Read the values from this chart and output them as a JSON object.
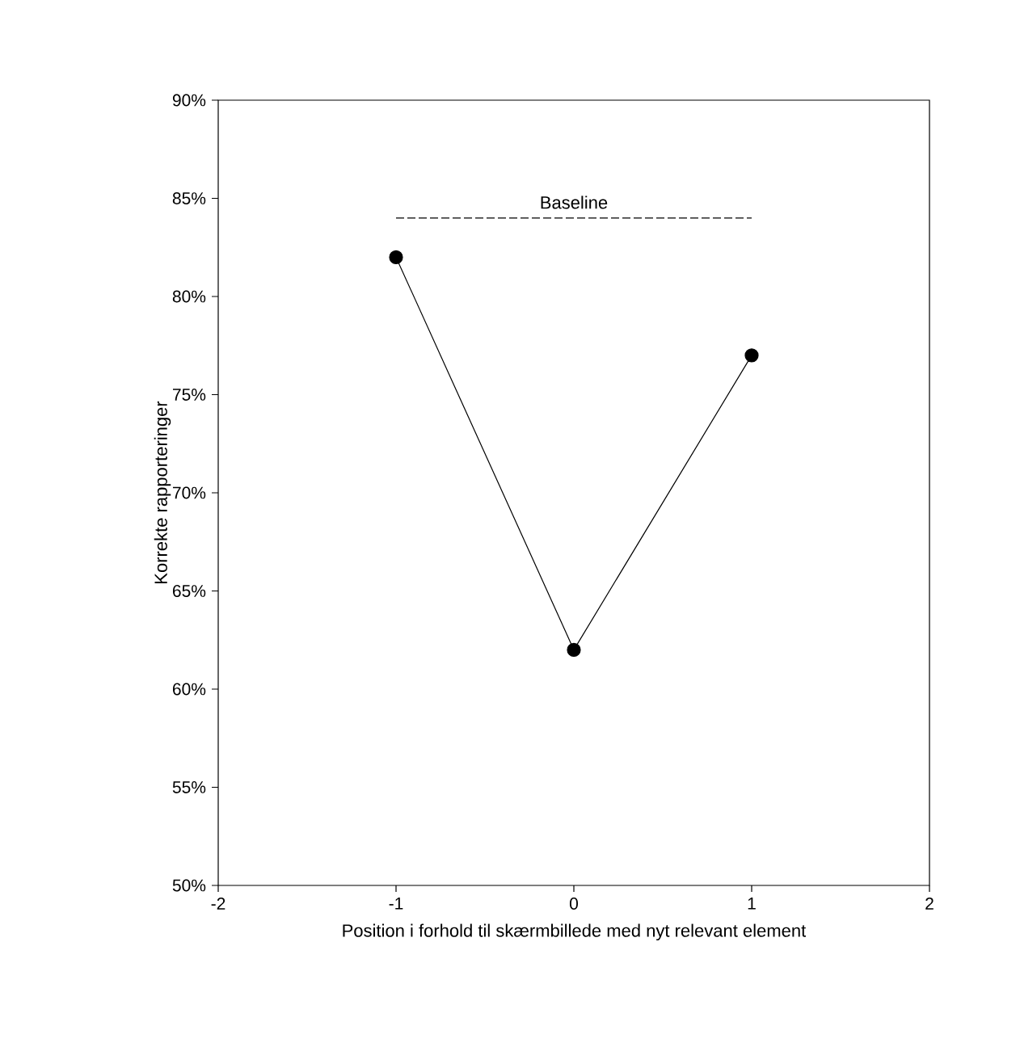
{
  "chart_data": {
    "type": "line",
    "xlabel": "Position i forhold til skærmbillede med nyt relevant element",
    "ylabel": "Korrekte rapporteringer",
    "x": [
      -1,
      0,
      1
    ],
    "series": [
      {
        "color": "#000000",
        "values": [
          82,
          62,
          77
        ],
        "marker": "circle",
        "line_style": "solid"
      },
      {
        "name": "Baseline",
        "color": "#000000",
        "x": [
          -1,
          1
        ],
        "values": [
          84,
          84
        ],
        "marker": "none",
        "line_style": "dashed"
      }
    ],
    "xlim": [
      -2,
      2
    ],
    "xticks": [
      -2,
      -1,
      0,
      1,
      2
    ],
    "ylim": [
      50,
      90
    ],
    "yticks": [
      {
        "value": 50,
        "label": "50%"
      },
      {
        "value": 55,
        "label": "55%"
      },
      {
        "value": 60,
        "label": "60%"
      },
      {
        "value": 65,
        "label": "65%"
      },
      {
        "value": 70,
        "label": "70%"
      },
      {
        "value": 75,
        "label": "75%"
      },
      {
        "value": 80,
        "label": "80%"
      },
      {
        "value": 85,
        "label": "85%"
      },
      {
        "value": 90,
        "label": "90%"
      }
    ],
    "grid": false
  }
}
